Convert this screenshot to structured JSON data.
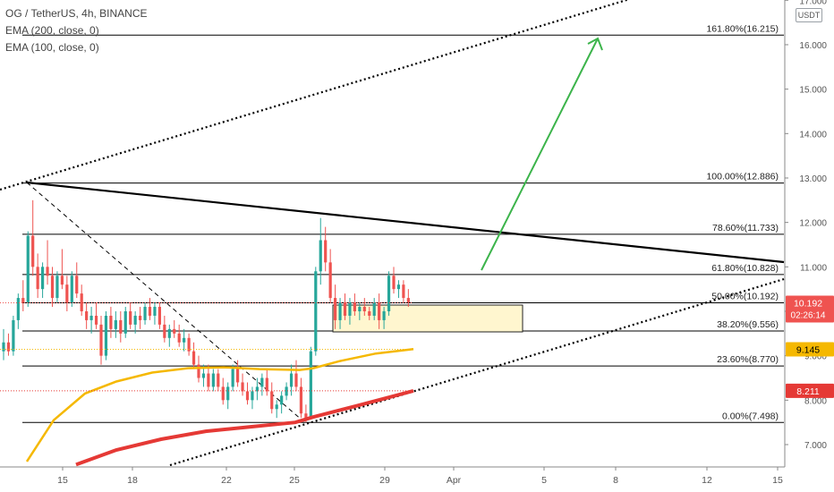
{
  "header": {
    "symbol": "OG / TetherUS, 4h, BINANCE",
    "ema200": "EMA (200, close, 0)",
    "ema100": "EMA (100, close, 0)"
  },
  "currency_badge": "USDT",
  "chart_data": {
    "type": "candlestick",
    "ylim": [
      6.55,
      17.0
    ],
    "y_ticks": [
      "7.000",
      "8.000",
      "9.000",
      "10.000",
      "11.000",
      "12.000",
      "13.000",
      "14.000",
      "15.000",
      "16.000",
      "17.000"
    ],
    "x_ticks": [
      "15",
      "18",
      "22",
      "25",
      "29",
      "Apr",
      "5",
      "8",
      "12",
      "15"
    ],
    "fib_levels": [
      {
        "label": "161.80%(16.215)",
        "value": 16.215
      },
      {
        "label": "100.00%(12.886)",
        "value": 12.886
      },
      {
        "label": "78.60%(11.733)",
        "value": 11.733
      },
      {
        "label": "61.80%(10.828)",
        "value": 10.828
      },
      {
        "label": "50.00%(10.192)",
        "value": 10.192
      },
      {
        "label": "38.20%(9.556)",
        "value": 9.556
      },
      {
        "label": "23.60%(8.770)",
        "value": 8.77
      },
      {
        "label": "0.00%(7.498)",
        "value": 7.498
      }
    ],
    "price_markers": [
      {
        "value": 10.192,
        "label": "10.192",
        "countdown": "02:26:14",
        "color": "#ef5350"
      },
      {
        "value": 9.145,
        "label": "9.145",
        "color": "#f5b800"
      },
      {
        "value": 8.211,
        "label": "8.211",
        "color": "#e53935"
      }
    ],
    "colors": {
      "up": "#26a69a",
      "down": "#ef5350",
      "ema200": "#f5b800",
      "ema100": "#e53935",
      "projection": "#3cb44b",
      "zone": "#fff6cf"
    }
  }
}
